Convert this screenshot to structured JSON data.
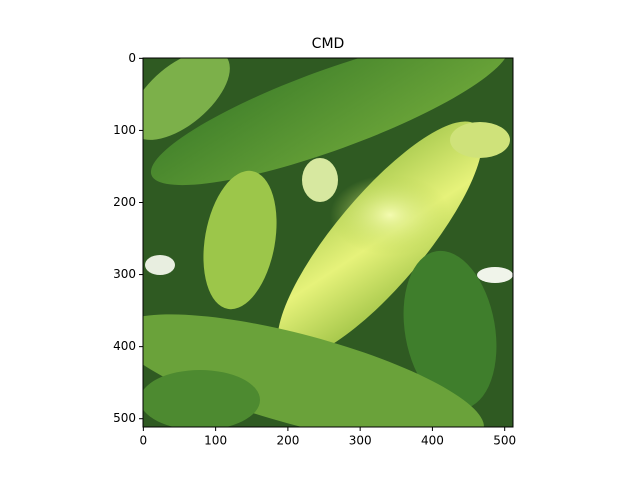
{
  "chart_data": {
    "type": "image",
    "title": "CMD",
    "xlim": [
      -0.5,
      511.5
    ],
    "ylim": [
      511.5,
      -0.5
    ],
    "xticks": [
      0,
      100,
      200,
      300,
      400,
      500
    ],
    "yticks": [
      0,
      100,
      200,
      300,
      400,
      500
    ]
  }
}
